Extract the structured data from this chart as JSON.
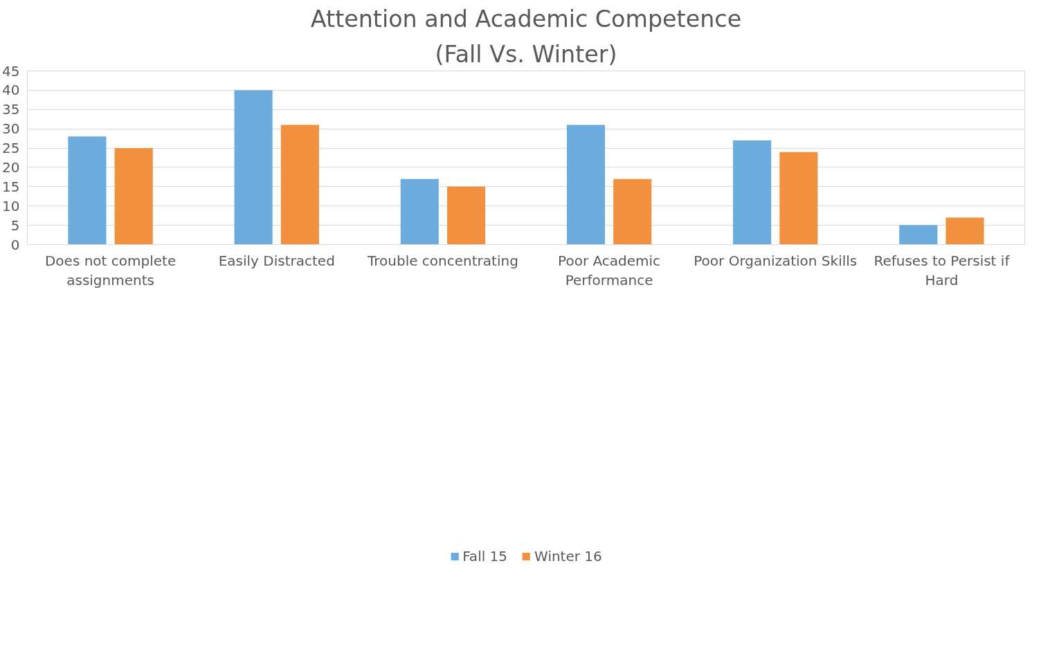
{
  "chart_data": {
    "type": "bar",
    "title": "Attention and Academic Competence",
    "subtitle": "(Fall Vs. Winter)",
    "categories": [
      "Does not complete assignments",
      "Easily Distracted",
      "Trouble concentrating",
      "Poor Academic Performance",
      "Poor Organization Skills",
      "Refuses to Persist if Hard"
    ],
    "series": [
      {
        "name": "Fall 15",
        "color": "#6cabdd",
        "values": [
          28,
          40,
          17,
          31,
          27,
          5
        ]
      },
      {
        "name": "Winter 16",
        "color": "#f1903e",
        "values": [
          25,
          31,
          15,
          17,
          24,
          7
        ]
      }
    ],
    "ylim": [
      0,
      45
    ],
    "yticks": [
      0,
      5,
      10,
      15,
      20,
      25,
      30,
      35,
      40,
      45
    ],
    "grid": "y",
    "legend": "bottom"
  }
}
